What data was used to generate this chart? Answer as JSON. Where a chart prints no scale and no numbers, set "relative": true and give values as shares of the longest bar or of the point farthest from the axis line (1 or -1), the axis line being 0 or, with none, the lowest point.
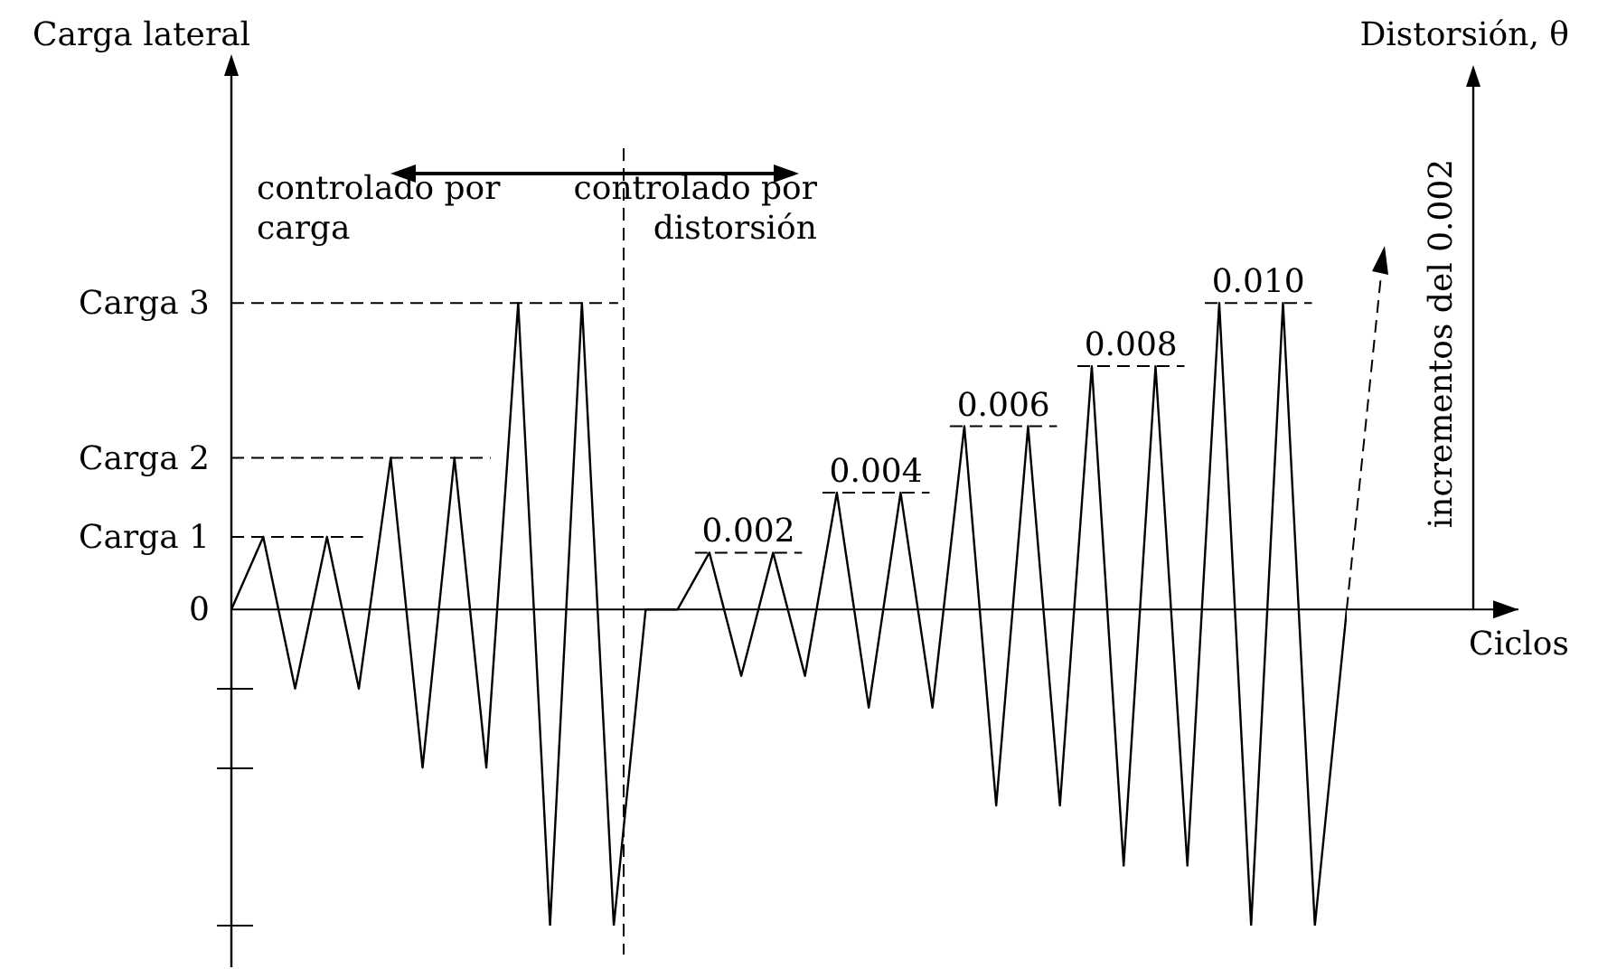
{
  "chart_data": {
    "type": "line",
    "relative": true,
    "xlabel": "Ciclos",
    "categories": [
      null,
      null,
      null,
      null,
      null,
      null,
      null,
      null,
      null,
      null,
      null,
      null,
      null,
      null,
      null,
      null,
      null,
      null,
      null,
      null,
      null,
      null,
      null,
      null,
      null,
      null,
      null,
      null,
      null,
      null,
      null,
      null,
      null,
      null,
      null,
      null
    ],
    "series": [
      {
        "color": "#000000",
        "values": [
          0,
          0.23,
          -0.25,
          0.23,
          -0.25,
          0.48,
          -0.5,
          0.48,
          -0.5,
          0.97,
          -1,
          0.97,
          -1,
          0,
          0,
          0.18,
          -0.21,
          0.18,
          -0.21,
          0.37,
          -0.31,
          0.37,
          -0.31,
          0.58,
          -0.62,
          0.58,
          -0.62,
          0.77,
          -0.81,
          0.77,
          -0.81,
          0.97,
          -1,
          0.97,
          -1,
          0
        ]
      }
    ],
    "marker": "none",
    "line_style": "solid",
    "grid": false,
    "legend": false,
    "ref_lines": [
      {
        "axis": "y",
        "value": 0,
        "label": "0",
        "line_style": "solid"
      },
      {
        "axis": "y",
        "value": 0.23,
        "label": "Carga 1",
        "line_style": "dashed"
      },
      {
        "axis": "y",
        "value": 0.48,
        "label": "Carga 2",
        "line_style": "dashed"
      },
      {
        "axis": "y",
        "value": 0.97,
        "label": "Carga 3",
        "line_style": "dashed"
      }
    ],
    "annotations": [
      "controlado por carga",
      "controlado por distorsión",
      "incrementos del 0.002",
      "Carga lateral",
      "Distorsión, θ",
      "0.002",
      "0.004",
      "0.006",
      "0.008",
      "0.010"
    ]
  }
}
